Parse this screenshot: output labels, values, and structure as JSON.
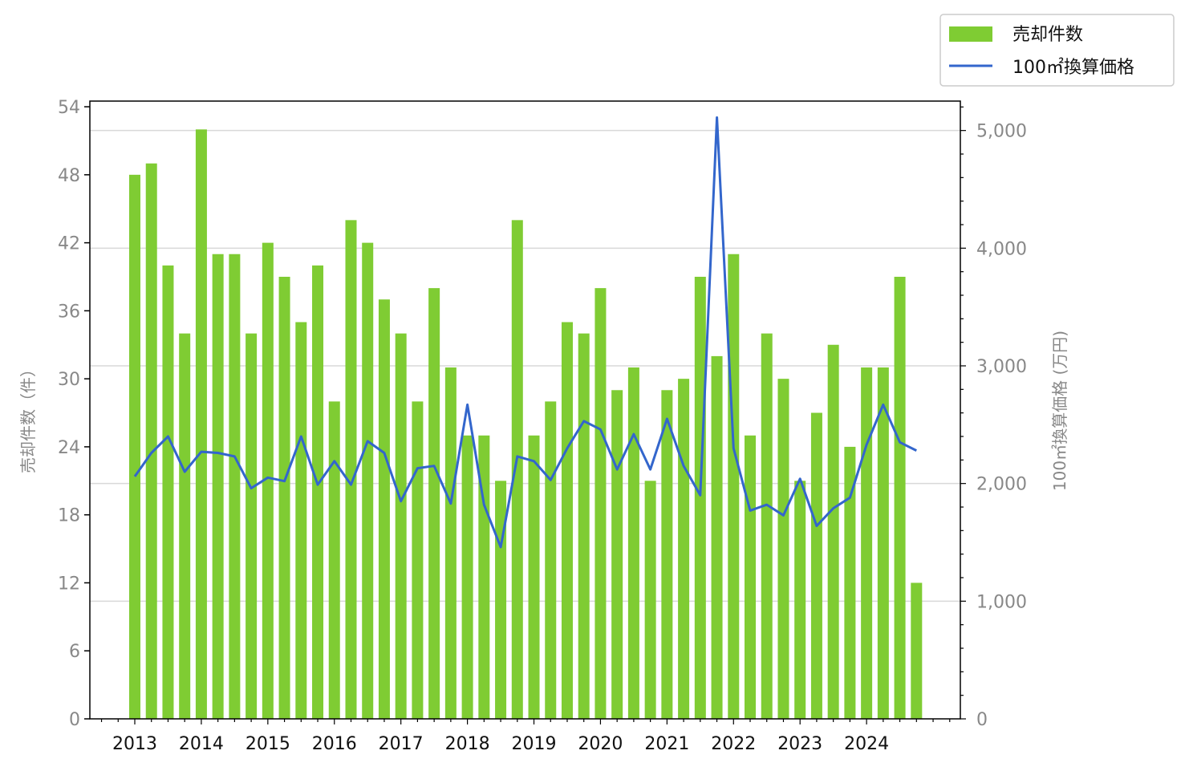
{
  "chart_data": {
    "type": "bar",
    "title": "",
    "xlabel": "",
    "ylabel": "売却件数（件）",
    "y2label": "100㎡換算価格 (万円)",
    "ylim": [
      0,
      54.5
    ],
    "y2lim": [
      0,
      5250
    ],
    "yticks": [
      "0",
      "6",
      "12",
      "18",
      "24",
      "30",
      "36",
      "42",
      "48",
      "54"
    ],
    "y2ticks": [
      "0",
      "1,000",
      "2,000",
      "3,000",
      "4,000",
      "5,000"
    ],
    "x_tick_labels": [
      "2013",
      "2014",
      "2015",
      "2016",
      "2017",
      "2018",
      "2019",
      "2020",
      "2021",
      "2022",
      "2023",
      "2024"
    ],
    "grid": "horizontal (right axis)",
    "legend_position": "top-right",
    "bar_color": "#7fcc33",
    "line_color": "#3366cc",
    "series": [
      {
        "name": "売却件数",
        "kind": "bar",
        "axis": "left",
        "values": [
          48,
          49,
          40,
          34,
          52,
          41,
          41,
          34,
          42,
          39,
          35,
          40,
          28,
          44,
          42,
          37,
          34,
          28,
          38,
          31,
          25,
          25,
          21,
          44,
          25,
          28,
          35,
          34,
          38,
          29,
          31,
          21,
          29,
          30,
          39,
          32,
          41,
          25,
          34,
          30,
          21,
          27,
          33,
          24,
          31,
          31,
          39,
          12
        ]
      },
      {
        "name": "100㎡換算価格",
        "kind": "line",
        "axis": "right",
        "values": [
          2060,
          2260,
          2400,
          2100,
          2270,
          2260,
          2230,
          1960,
          2050,
          2020,
          2400,
          1990,
          2190,
          1990,
          2360,
          2260,
          1850,
          2130,
          2150,
          1830,
          2670,
          1820,
          1460,
          2230,
          2190,
          2030,
          2300,
          2530,
          2460,
          2120,
          2420,
          2120,
          2550,
          2150,
          1900,
          5110,
          2300,
          1770,
          1820,
          1730,
          2040,
          1640,
          1790,
          1880,
          2330,
          2670,
          2350,
          2280
        ]
      }
    ]
  }
}
